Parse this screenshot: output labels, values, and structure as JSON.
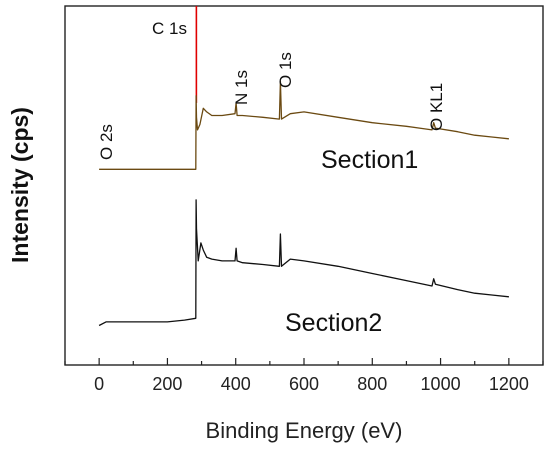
{
  "chart_data": {
    "type": "line",
    "title": "",
    "xlabel": "Binding Energy (eV)",
    "ylabel": "Intensity (cps)",
    "xlim": [
      -100,
      1300
    ],
    "ylim": [
      0,
      10
    ],
    "x_ticks": [
      0,
      200,
      400,
      600,
      800,
      1000,
      1200
    ],
    "y_ticks_shown": false,
    "grid": false,
    "reference_line": {
      "x": 284.8,
      "color": "#e00000"
    },
    "series": [
      {
        "label": "Section1",
        "color": "#6b4a12",
        "x": [
          0,
          50,
          100,
          150,
          200,
          250,
          283,
          284,
          285,
          288,
          295,
          305,
          315,
          330,
          360,
          398,
          401,
          404,
          420,
          480,
          528,
          531,
          534,
          560,
          600,
          700,
          800,
          900,
          975,
          980,
          985,
          1050,
          1100,
          1150,
          1200
        ],
        "y": [
          5.45,
          5.45,
          5.45,
          5.45,
          5.45,
          5.45,
          5.45,
          7.5,
          6.9,
          6.55,
          6.7,
          7.15,
          7.05,
          6.95,
          6.95,
          7.0,
          7.3,
          6.95,
          6.95,
          6.9,
          6.85,
          7.9,
          6.85,
          7.0,
          7.05,
          6.9,
          6.75,
          6.65,
          6.55,
          6.75,
          6.6,
          6.5,
          6.4,
          6.35,
          6.3
        ]
      },
      {
        "label": "Section2",
        "color": "#111111",
        "x": [
          0,
          20,
          40,
          100,
          150,
          200,
          250,
          283,
          284,
          285,
          290,
          298,
          305,
          315,
          330,
          360,
          398,
          401,
          404,
          420,
          480,
          528,
          531,
          534,
          560,
          600,
          700,
          800,
          900,
          975,
          980,
          985,
          1050,
          1100,
          1150,
          1200
        ],
        "y": [
          1.1,
          1.2,
          1.2,
          1.2,
          1.2,
          1.2,
          1.25,
          1.3,
          4.6,
          3.8,
          2.9,
          3.4,
          3.2,
          3.0,
          2.95,
          2.9,
          2.9,
          3.25,
          2.9,
          2.85,
          2.8,
          2.75,
          3.65,
          2.75,
          2.95,
          2.9,
          2.75,
          2.55,
          2.35,
          2.2,
          2.4,
          2.25,
          2.1,
          2.0,
          1.95,
          1.9
        ]
      }
    ],
    "annotations": [
      {
        "text": "C 1s",
        "orientation": "horizontal"
      },
      {
        "text": "N 1s",
        "orientation": "vertical"
      },
      {
        "text": "O 1s",
        "orientation": "vertical"
      },
      {
        "text": "O 2s",
        "orientation": "vertical"
      },
      {
        "text": "O KL1",
        "orientation": "vertical"
      },
      {
        "text": "Section1",
        "orientation": "horizontal"
      },
      {
        "text": "Section2",
        "orientation": "horizontal"
      }
    ]
  }
}
